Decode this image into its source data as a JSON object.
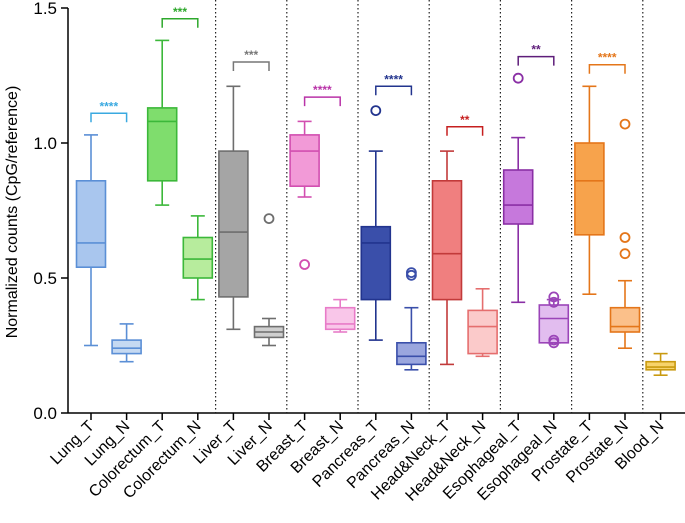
{
  "chart_data": {
    "type": "box",
    "ylabel": "Normalized counts (CpG/reference)",
    "xlabel": "",
    "ylim": [
      0,
      1.5
    ],
    "yticks": [
      0.0,
      0.5,
      1.0,
      1.5
    ],
    "ytick_labels": [
      "0.0",
      "0.5",
      "1.0",
      "1.5"
    ],
    "grid": false,
    "categories": [
      "Lung_T",
      "Lung_N",
      "Colorectum_T",
      "Colorectum_N",
      "Liver_T",
      "Liver_N",
      "Breast_T",
      "Breast_N",
      "Pancreas_T",
      "Pancreas_N",
      "Head&Neck_T",
      "Head&Neck_N",
      "Esophageal_T",
      "Esophageal_N",
      "Prostate_T",
      "Prostate_N",
      "Blood_N"
    ],
    "boxes": [
      {
        "label": "Lung_T",
        "min": 0.25,
        "q1": 0.54,
        "median": 0.63,
        "q3": 0.86,
        "max": 1.03,
        "outliers": [],
        "color": "#5b8fd6",
        "fill": "#a9c6ee"
      },
      {
        "label": "Lung_N",
        "min": 0.19,
        "q1": 0.22,
        "median": 0.24,
        "q3": 0.27,
        "max": 0.33,
        "outliers": [],
        "color": "#5b8fd6",
        "fill": "#c5d9f2"
      },
      {
        "label": "Colorectum_T",
        "min": 0.77,
        "q1": 0.86,
        "median": 1.08,
        "q3": 1.13,
        "max": 1.38,
        "outliers": [],
        "color": "#3cb83a",
        "fill": "#7fdd6d"
      },
      {
        "label": "Colorectum_N",
        "min": 0.42,
        "q1": 0.5,
        "median": 0.57,
        "q3": 0.65,
        "max": 0.73,
        "outliers": [],
        "color": "#3cb83a",
        "fill": "#b7ec9d"
      },
      {
        "label": "Liver_T",
        "min": 0.31,
        "q1": 0.43,
        "median": 0.67,
        "q3": 0.97,
        "max": 1.21,
        "outliers": [],
        "color": "#6e6e6e",
        "fill": "#a5a5a5"
      },
      {
        "label": "Liver_N",
        "min": 0.25,
        "q1": 0.28,
        "median": 0.3,
        "q3": 0.32,
        "max": 0.35,
        "outliers": [
          0.72
        ],
        "color": "#6e6e6e",
        "fill": "#cfcfcf"
      },
      {
        "label": "Breast_T",
        "min": 0.8,
        "q1": 0.84,
        "median": 0.97,
        "q3": 1.03,
        "max": 1.08,
        "outliers": [
          0.55
        ],
        "color": "#d24fb0",
        "fill": "#f29ad7"
      },
      {
        "label": "Breast_N",
        "min": 0.3,
        "q1": 0.31,
        "median": 0.33,
        "q3": 0.39,
        "max": 0.42,
        "outliers": [],
        "color": "#e87bc8",
        "fill": "#f9c6e9"
      },
      {
        "label": "Pancreas_T",
        "min": 0.27,
        "q1": 0.42,
        "median": 0.63,
        "q3": 0.69,
        "max": 0.97,
        "outliers": [
          1.12
        ],
        "color": "#22348e",
        "fill": "#3a4faa"
      },
      {
        "label": "Pancreas_N",
        "min": 0.16,
        "q1": 0.18,
        "median": 0.21,
        "q3": 0.26,
        "max": 0.39,
        "outliers": [
          0.51,
          0.52
        ],
        "color": "#3a4faa",
        "fill": "#9aa6de"
      },
      {
        "label": "Head&Neck_T",
        "min": 0.18,
        "q1": 0.42,
        "median": 0.59,
        "q3": 0.86,
        "max": 0.97,
        "outliers": [],
        "color": "#c23a3a",
        "fill": "#f07f7f"
      },
      {
        "label": "Head&Neck_N",
        "min": 0.21,
        "q1": 0.22,
        "median": 0.32,
        "q3": 0.38,
        "max": 0.46,
        "outliers": [],
        "color": "#e56e6e",
        "fill": "#fbcaca"
      },
      {
        "label": "Esophageal_T",
        "min": 0.41,
        "q1": 0.7,
        "median": 0.77,
        "q3": 0.9,
        "max": 1.02,
        "outliers": [
          1.24
        ],
        "color": "#8a2fa5",
        "fill": "#c678dc"
      },
      {
        "label": "Esophageal_N",
        "min": 0.26,
        "q1": 0.26,
        "median": 0.35,
        "q3": 0.4,
        "max": 0.42,
        "outliers": [
          0.27,
          0.26,
          0.41,
          0.43
        ],
        "color": "#9b45b8",
        "fill": "#e2bdef"
      },
      {
        "label": "Prostate_T",
        "min": 0.44,
        "q1": 0.66,
        "median": 0.86,
        "q3": 1.0,
        "max": 1.21,
        "outliers": [],
        "color": "#e4761a",
        "fill": "#f7a34c"
      },
      {
        "label": "Prostate_N",
        "min": 0.24,
        "q1": 0.3,
        "median": 0.32,
        "q3": 0.39,
        "max": 0.49,
        "outliers": [
          1.07,
          0.65,
          0.59
        ],
        "color": "#e4761a",
        "fill": "#fbc08a"
      },
      {
        "label": "Blood_N",
        "min": 0.14,
        "q1": 0.16,
        "median": 0.17,
        "q3": 0.19,
        "max": 0.22,
        "outliers": [],
        "color": "#c99a10",
        "fill": "#f7d36a"
      }
    ],
    "significance": [
      {
        "pair": [
          "Lung_T",
          "Lung_N"
        ],
        "label": "****",
        "y": 1.11,
        "color": "#3aa9e0"
      },
      {
        "pair": [
          "Colorectum_T",
          "Colorectum_N"
        ],
        "label": "***",
        "y": 1.46,
        "color": "#2ea82c"
      },
      {
        "pair": [
          "Liver_T",
          "Liver_N"
        ],
        "label": "***",
        "y": 1.3,
        "color": "#777777"
      },
      {
        "pair": [
          "Breast_T",
          "Breast_N"
        ],
        "label": "****",
        "y": 1.17,
        "color": "#b933a8"
      },
      {
        "pair": [
          "Pancreas_T",
          "Pancreas_N"
        ],
        "label": "****",
        "y": 1.21,
        "color": "#22348e"
      },
      {
        "pair": [
          "Head&Neck_T",
          "Head&Neck_N"
        ],
        "label": "**",
        "y": 1.06,
        "color": "#c61f1f"
      },
      {
        "pair": [
          "Esophageal_T",
          "Esophageal_N"
        ],
        "label": "**",
        "y": 1.32,
        "color": "#5e1d7a"
      },
      {
        "pair": [
          "Prostate_T",
          "Prostate_N"
        ],
        "label": "****",
        "y": 1.29,
        "color": "#e4761a"
      }
    ],
    "group_separators_after": [
      "Colorectum_N",
      "Liver_N",
      "Breast_N",
      "Pancreas_N",
      "Head&Neck_N",
      "Esophageal_N",
      "Prostate_N"
    ]
  }
}
